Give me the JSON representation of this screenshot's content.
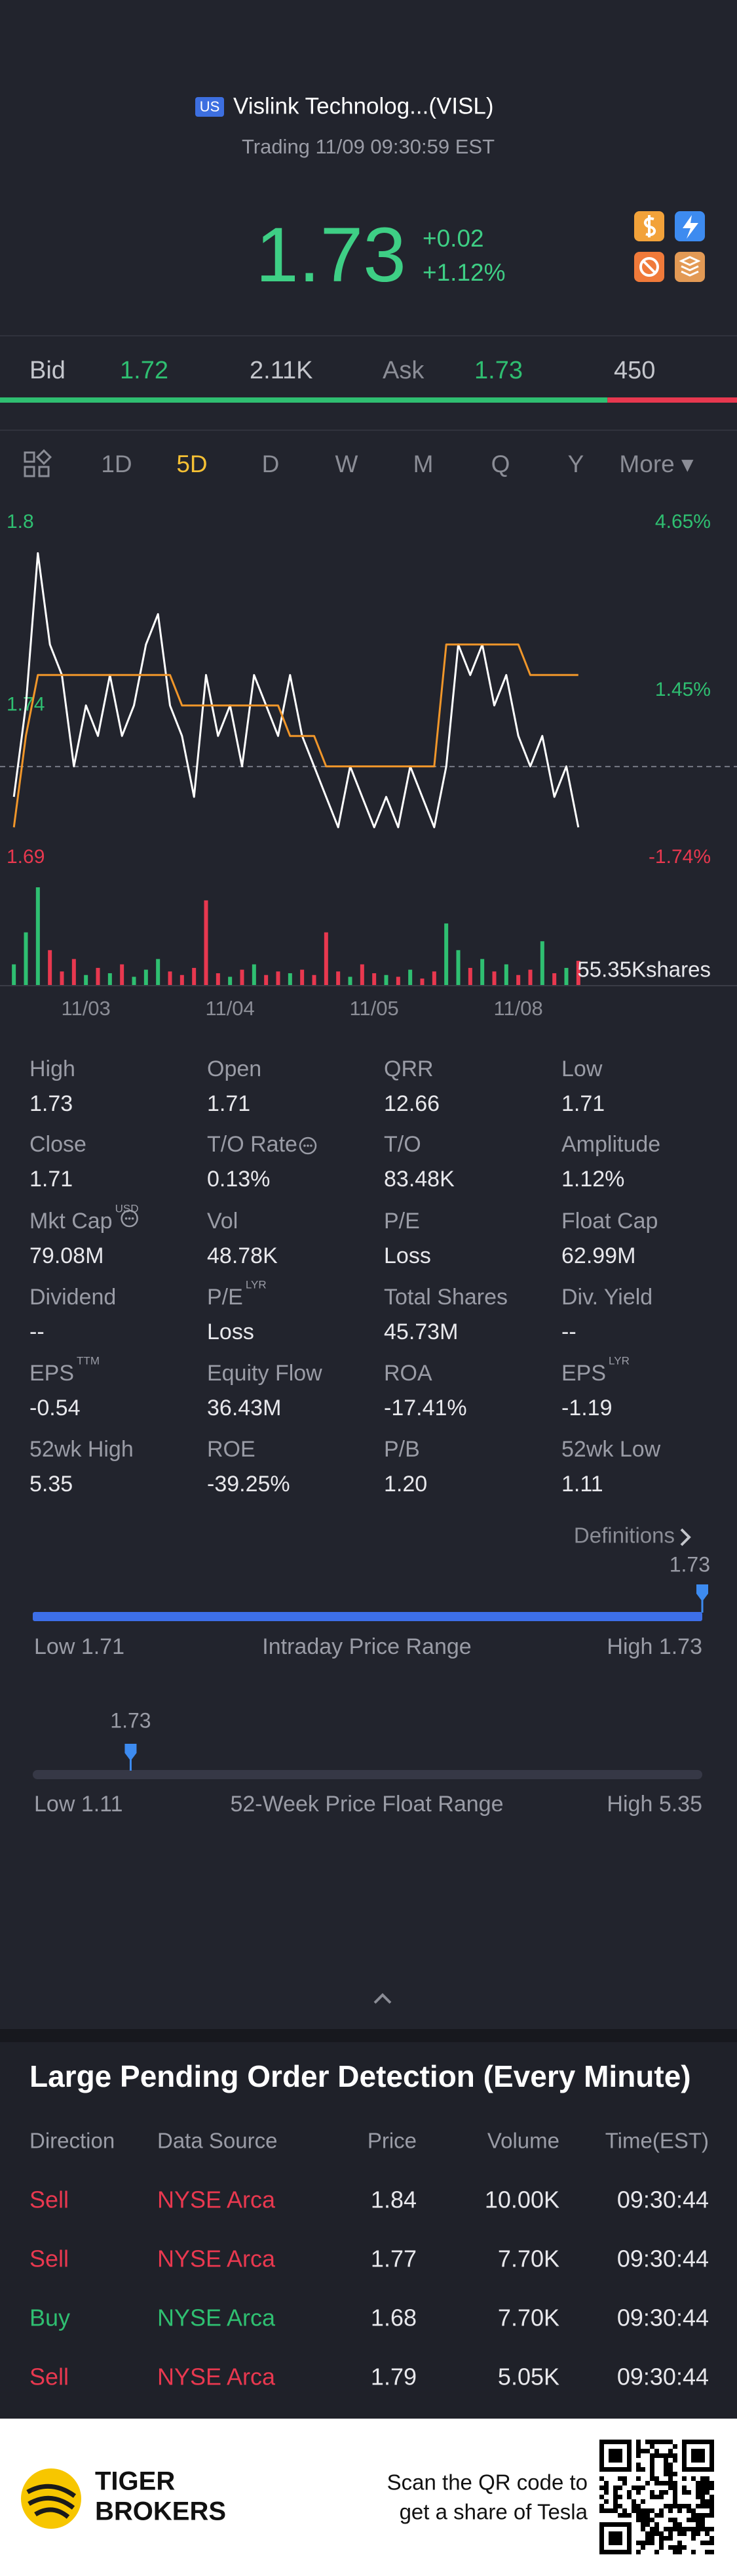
{
  "header": {
    "market": "US",
    "title": "Vislink Technolog...(VISL)",
    "status": "Trading 11/09 09:30:59 EST"
  },
  "quote": {
    "price": 1.73,
    "change": "+0.02",
    "change_pct": "+1.12%"
  },
  "bid_ask": {
    "bid_label": "Bid",
    "bid": 1.72,
    "bid_size": 2110,
    "bid_size_label": "2.11K",
    "ask_label": "Ask",
    "ask": 1.73,
    "ask_size": 450
  },
  "tabs": {
    "items": [
      "1D",
      "5D",
      "D",
      "W",
      "M",
      "Q",
      "Y",
      "More ▾"
    ],
    "active": 1
  },
  "chart_data": [
    {
      "type": "line",
      "categories": [
        null,
        null,
        null,
        null,
        null,
        null,
        "11/03",
        null,
        null,
        null,
        null,
        null,
        null,
        null,
        null,
        null,
        null,
        null,
        "11/04",
        null,
        null,
        null,
        null,
        null,
        null,
        null,
        null,
        null,
        null,
        null,
        "11/05",
        null,
        null,
        null,
        null,
        null,
        null,
        null,
        null,
        null,
        null,
        null,
        "11/08",
        null,
        null,
        null,
        null,
        null
      ],
      "series": [
        {
          "name": "Price",
          "color": "#ffffff",
          "values": [
            1.71,
            1.74,
            1.79,
            1.76,
            1.75,
            1.72,
            1.74,
            1.73,
            1.75,
            1.73,
            1.74,
            1.76,
            1.77,
            1.74,
            1.73,
            1.71,
            1.75,
            1.73,
            1.74,
            1.72,
            1.75,
            1.74,
            1.73,
            1.75,
            1.73,
            1.72,
            1.71,
            1.7,
            1.72,
            1.71,
            1.7,
            1.71,
            1.7,
            1.72,
            1.71,
            1.7,
            1.72,
            1.76,
            1.75,
            1.76,
            1.74,
            1.75,
            1.73,
            1.72,
            1.73,
            1.71,
            1.72,
            1.7
          ]
        },
        {
          "name": "Average",
          "color": "#f0962a",
          "values": [
            1.7,
            1.73,
            1.75,
            1.75,
            1.75,
            1.75,
            1.75,
            1.75,
            1.75,
            1.75,
            1.75,
            1.75,
            1.75,
            1.75,
            1.74,
            1.74,
            1.74,
            1.74,
            1.74,
            1.74,
            1.74,
            1.74,
            1.74,
            1.73,
            1.73,
            1.73,
            1.72,
            1.72,
            1.72,
            1.72,
            1.72,
            1.72,
            1.72,
            1.72,
            1.72,
            1.72,
            1.76,
            1.76,
            1.76,
            1.76,
            1.76,
            1.76,
            1.76,
            1.75,
            1.75,
            1.75,
            1.75,
            1.75
          ]
        }
      ],
      "ylim": [
        1.69,
        1.8
      ],
      "yticks": [
        1.69,
        1.74,
        1.8
      ],
      "y2lim": [
        -1.74,
        4.65
      ],
      "y2ticks": [
        {
          "value": -1.74,
          "label": "-1.74%"
        },
        {
          "value": 1.45,
          "label": "1.45%"
        },
        {
          "value": 4.65,
          "label": "4.65%"
        }
      ],
      "reference_y2": 0
    },
    {
      "type": "bar",
      "values": [
        12000,
        30000,
        55350,
        20000,
        8000,
        15000,
        6000,
        10000,
        7000,
        12000,
        5000,
        9000,
        15000,
        8000,
        6000,
        10000,
        48000,
        7000,
        5000,
        9000,
        12000,
        6000,
        8000,
        7000,
        9000,
        6000,
        30000,
        8000,
        5000,
        12000,
        7000,
        6000,
        5000,
        9000,
        4000,
        8000,
        35000,
        20000,
        10000,
        15000,
        8000,
        12000,
        6000,
        9000,
        25000,
        7000,
        10000,
        14000
      ],
      "colors": [
        "#2fbf71",
        "#2fbf71",
        "#2fbf71",
        "#e8384f",
        "#e8384f",
        "#e8384f",
        "#2fbf71",
        "#e8384f",
        "#2fbf71",
        "#e8384f",
        "#2fbf71",
        "#2fbf71",
        "#2fbf71",
        "#e8384f",
        "#e8384f",
        "#e8384f",
        "#e8384f",
        "#e8384f",
        "#2fbf71",
        "#e8384f",
        "#2fbf71",
        "#e8384f",
        "#e8384f",
        "#2fbf71",
        "#e8384f",
        "#e8384f",
        "#e8384f",
        "#e8384f",
        "#2fbf71",
        "#e8384f",
        "#e8384f",
        "#2fbf71",
        "#e8384f",
        "#2fbf71",
        "#e8384f",
        "#e8384f",
        "#2fbf71",
        "#2fbf71",
        "#e8384f",
        "#2fbf71",
        "#e8384f",
        "#2fbf71",
        "#e8384f",
        "#e8384f",
        "#2fbf71",
        "#e8384f",
        "#2fbf71",
        "#e8384f"
      ],
      "ylim": [
        0,
        55350
      ],
      "yticks": [
        {
          "value": 55350,
          "label": "55.35Kshares"
        }
      ]
    }
  ],
  "stats": [
    {
      "label": "High",
      "value": "1.73"
    },
    {
      "label": "Open",
      "value": "1.71"
    },
    {
      "label": "QRR",
      "value": "12.66"
    },
    {
      "label": "Low",
      "value": "1.71"
    },
    {
      "label": "Close",
      "value": "1.71"
    },
    {
      "label": "T/O Rate",
      "value": "0.13%",
      "info": true
    },
    {
      "label": "T/O",
      "value": "83.48K"
    },
    {
      "label": "Amplitude",
      "value": "1.12%"
    },
    {
      "label": "Mkt Cap",
      "sup": "USD",
      "value": "79.08M",
      "info": true
    },
    {
      "label": "Vol",
      "value": "48.78K"
    },
    {
      "label": "P/E",
      "value": "Loss"
    },
    {
      "label": "Float Cap",
      "value": "62.99M"
    },
    {
      "label": "Dividend",
      "value": "--"
    },
    {
      "label": "P/E",
      "sup": "LYR",
      "value": "Loss"
    },
    {
      "label": "Total Shares",
      "value": "45.73M"
    },
    {
      "label": "Div. Yield",
      "value": "--"
    },
    {
      "label": "EPS",
      "sup": "TTM",
      "value": "-0.54"
    },
    {
      "label": "Equity Flow",
      "value": "36.43M"
    },
    {
      "label": "ROA",
      "value": "-17.41%"
    },
    {
      "label": "EPS",
      "sup": "LYR",
      "value": "-1.19"
    },
    {
      "label": "52wk High",
      "value": "5.35"
    },
    {
      "label": "ROE",
      "value": "-39.25%"
    },
    {
      "label": "P/B",
      "value": "1.20"
    },
    {
      "label": "52wk Low",
      "value": "1.11"
    }
  ],
  "definitions": "Definitions",
  "ranges": [
    {
      "title": "Intraday Price Range",
      "low_label": "Low",
      "low": 1.71,
      "high_label": "High",
      "high": 1.73,
      "current": 1.73
    },
    {
      "title": "52-Week Price Float Range",
      "low_label": "Low",
      "low": 1.11,
      "high_label": "High",
      "high": 5.35,
      "current": 1.73
    }
  ],
  "orders": {
    "title": "Large Pending Order Detection (Every Minute)",
    "columns": [
      "Direction",
      "Data Source",
      "Price",
      "Volume",
      "Time(EST)"
    ],
    "rows": [
      {
        "color": "#e8384f",
        "cells": [
          "Sell",
          "NYSE Arca",
          "1.84",
          "10.00K",
          "09:30:44"
        ]
      },
      {
        "color": "#e8384f",
        "cells": [
          "Sell",
          "NYSE Arca",
          "1.77",
          "7.70K",
          "09:30:44"
        ]
      },
      {
        "color": "#2fbf71",
        "cells": [
          "Buy",
          "NYSE Arca",
          "1.68",
          "7.70K",
          "09:30:44"
        ]
      },
      {
        "color": "#e8384f",
        "cells": [
          "Sell",
          "NYSE Arca",
          "1.79",
          "5.05K",
          "09:30:44"
        ]
      }
    ]
  },
  "footer": {
    "brand": [
      "TIGER",
      "BROKERS"
    ],
    "cta": [
      "Scan the QR code to",
      "get a share of Tesla"
    ]
  }
}
